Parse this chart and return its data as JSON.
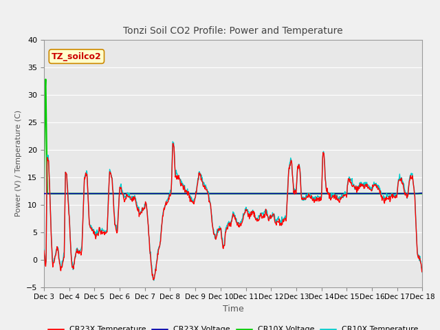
{
  "title": "Tonzi Soil CO2 Profile: Power and Temperature",
  "xlabel": "Time",
  "ylabel": "Power (V) / Temperature (C)",
  "ylim": [
    -5,
    40
  ],
  "yticks": [
    -5,
    0,
    5,
    10,
    15,
    20,
    25,
    30,
    35,
    40
  ],
  "xlim": [
    0,
    15
  ],
  "xtick_labels": [
    "Dec 3",
    "Dec 4",
    "Dec 5",
    "Dec 6",
    "Dec 7",
    "Dec 8",
    "Dec 9",
    "Dec 10",
    "Dec 11",
    "Dec 12",
    "Dec 13",
    "Dec 14",
    "Dec 15",
    "Dec 16",
    "Dec 17",
    "Dec 18"
  ],
  "legend_labels": [
    "CR23X Temperature",
    "CR23X Voltage",
    "CR10X Voltage",
    "CR10X Temperature"
  ],
  "legend_colors": [
    "#ff0000",
    "#0000aa",
    "#00cc00",
    "#00cccc"
  ],
  "annotation_text": "TZ_soilco2",
  "annotation_color": "#cc0000",
  "annotation_bg": "#ffffcc",
  "plot_bg": "#e0e0e0",
  "fig_bg": "#f0f0f0",
  "grid_color": "#ffffff",
  "cr10x_voltage_level": 12.0,
  "cr10x_voltage_spike_x": 0.12,
  "cr10x_voltage_spike_y": 35.0
}
